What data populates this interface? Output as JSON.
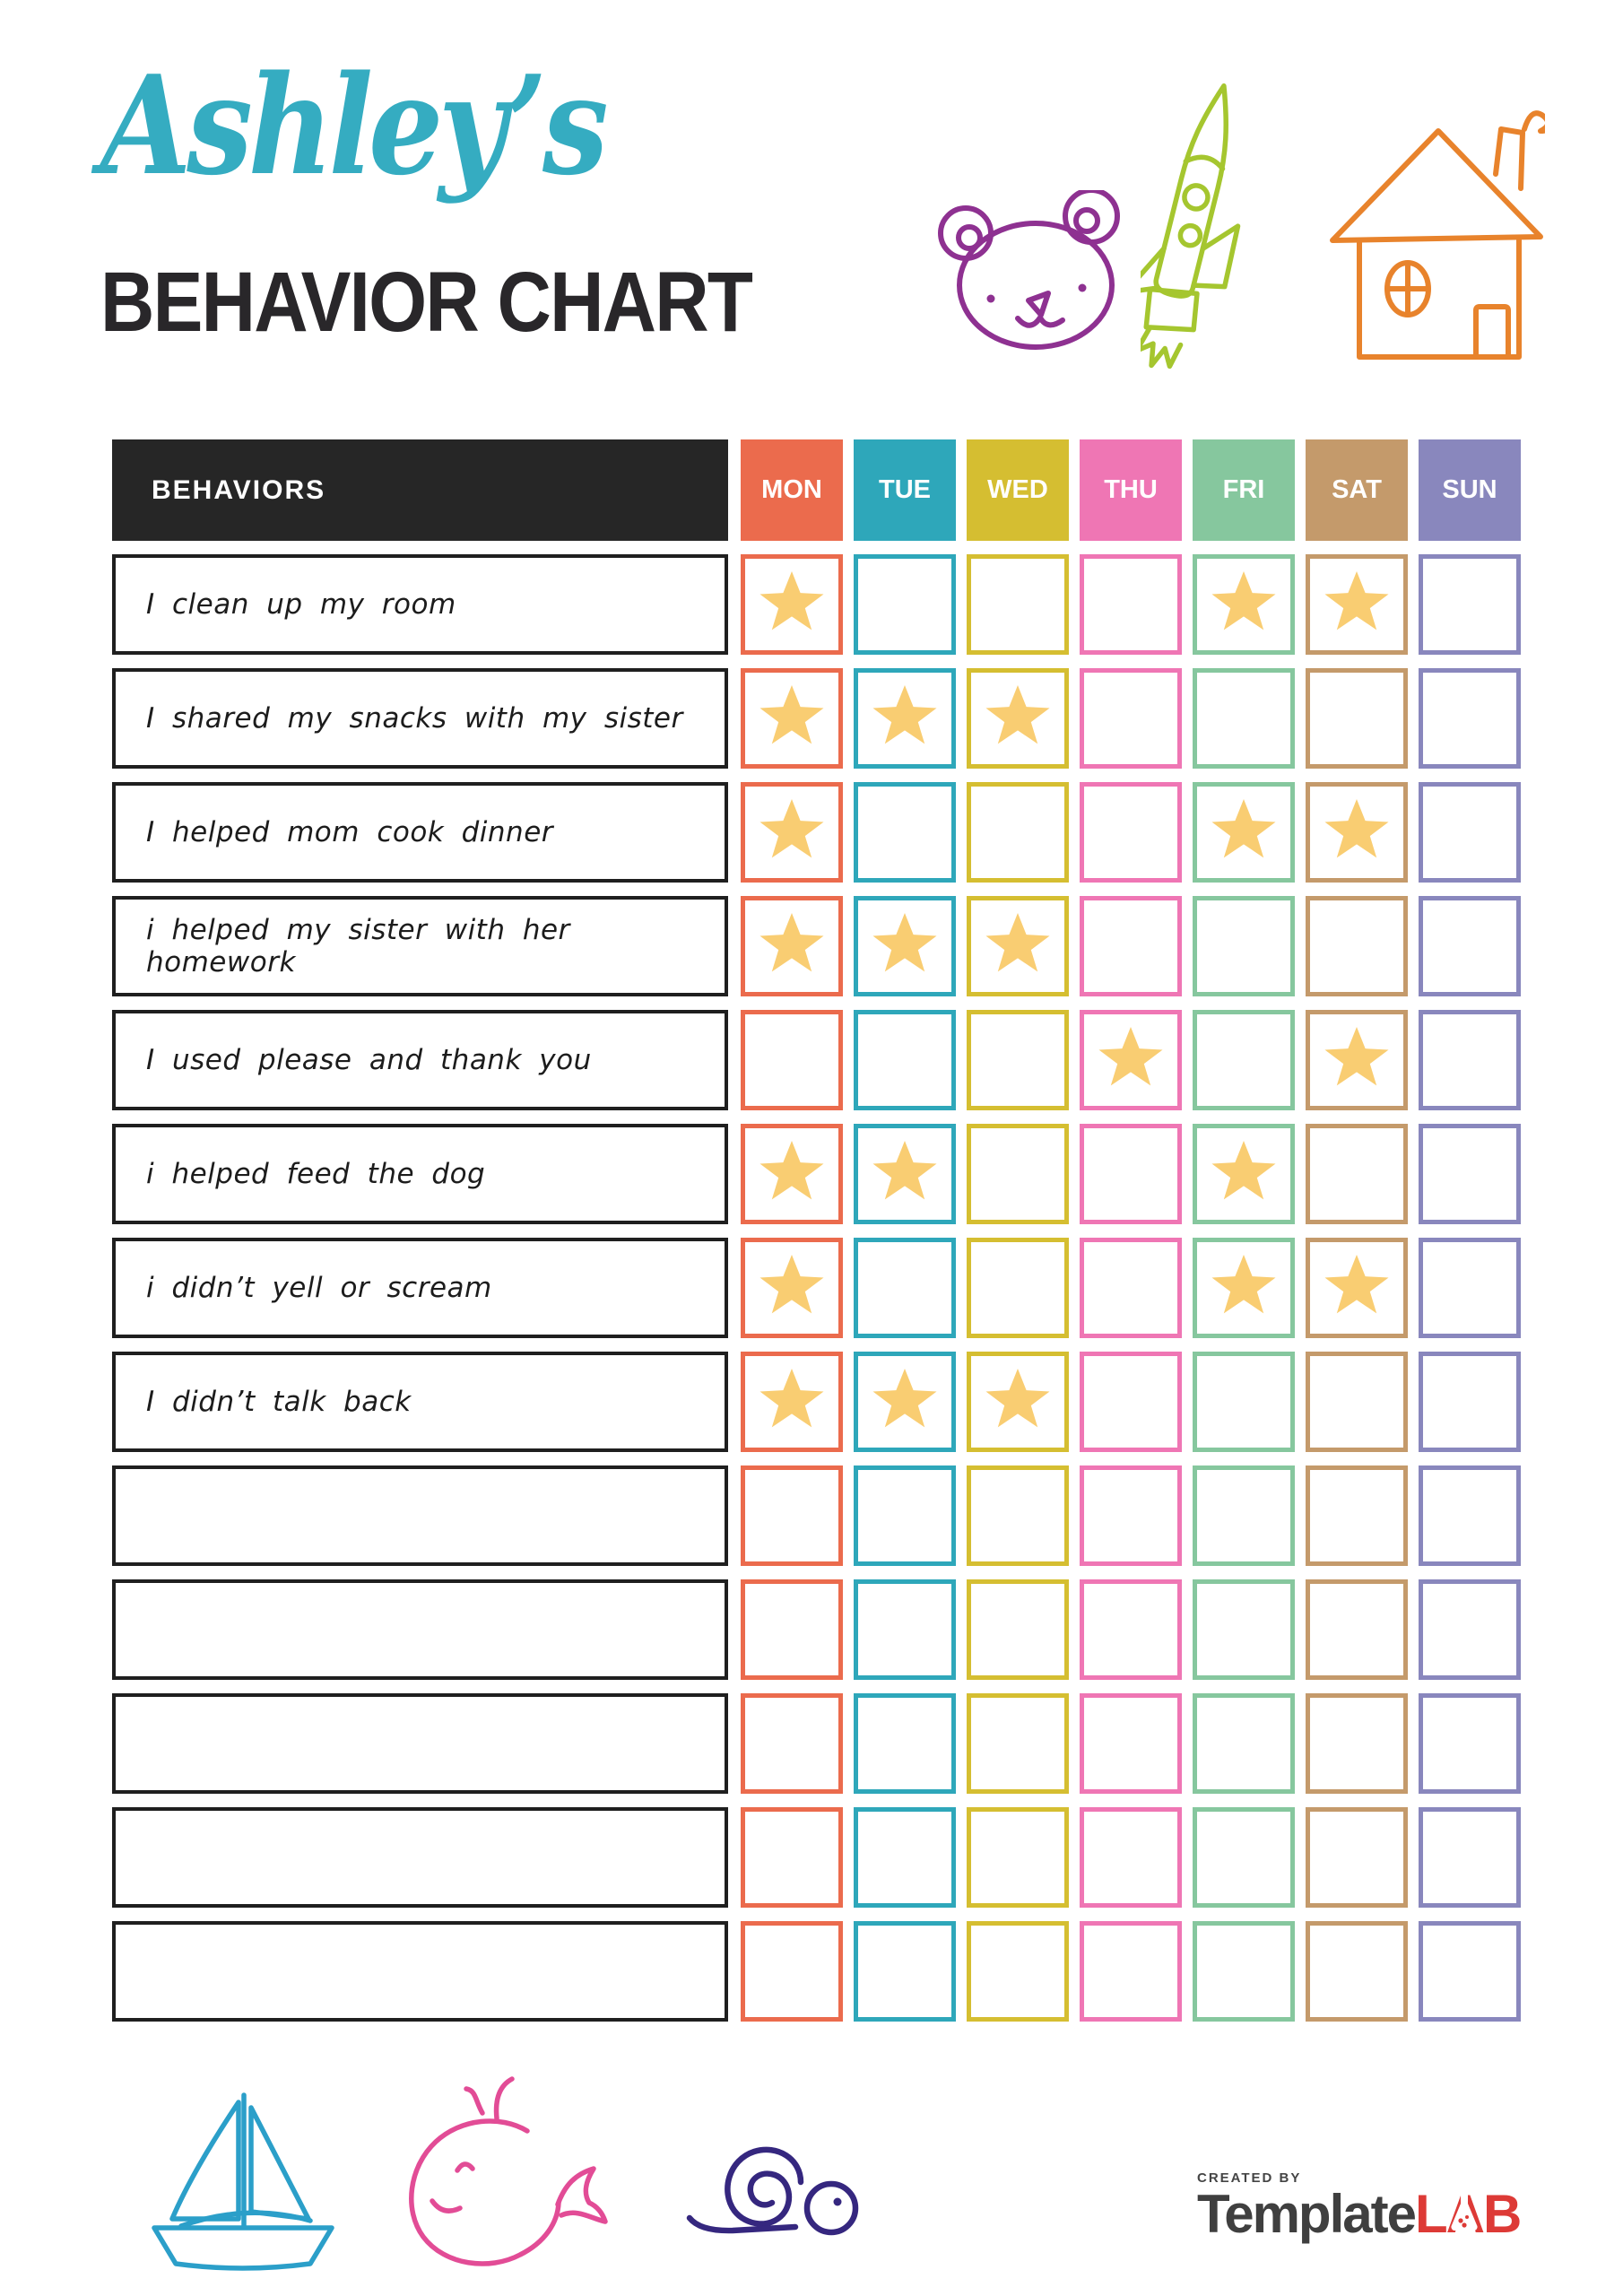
{
  "header": {
    "kid_name": "Ashley’s",
    "kid_name_color": "#35ACC1",
    "title": "BEHAVIOR CHART",
    "title_color": "#29272A"
  },
  "doodles": {
    "bear_color": "#8E3191",
    "rocket_color": "#A5C62F",
    "house_color": "#E8832C",
    "sailboat_color": "#2B9FC9",
    "whale_color": "#E24C96",
    "snail_color": "#35277F"
  },
  "table": {
    "behaviors_header": "BEHAVIORS",
    "header_bg": "#262626",
    "header_text_color": "#FFFFFF",
    "star_color": "#F9CD72",
    "days": [
      {
        "label": "MON",
        "color": "#EB6B4D"
      },
      {
        "label": "TUE",
        "color": "#2EA7BA"
      },
      {
        "label": "WED",
        "color": "#D5BE31"
      },
      {
        "label": "THU",
        "color": "#EF76B4"
      },
      {
        "label": "FRI",
        "color": "#86C79E"
      },
      {
        "label": "SAT",
        "color": "#C49A6B"
      },
      {
        "label": "SUN",
        "color": "#8987BD"
      }
    ],
    "rows": [
      {
        "label": "I clean up my room",
        "stars": [
          1,
          0,
          0,
          0,
          1,
          1,
          0
        ]
      },
      {
        "label": "I shared my snacks with my sister",
        "stars": [
          1,
          1,
          1,
          0,
          0,
          0,
          0
        ]
      },
      {
        "label": "I helped mom cook dinner",
        "stars": [
          1,
          0,
          0,
          0,
          1,
          1,
          0
        ]
      },
      {
        "label": "i helped my sister with her homework",
        "stars": [
          1,
          1,
          1,
          0,
          0,
          0,
          0
        ]
      },
      {
        "label": "I used please and thank you",
        "stars": [
          0,
          0,
          0,
          1,
          0,
          1,
          0
        ]
      },
      {
        "label": "i helped feed the dog",
        "stars": [
          1,
          1,
          0,
          0,
          1,
          0,
          0
        ]
      },
      {
        "label": "i didn’t yell or scream",
        "stars": [
          1,
          0,
          0,
          0,
          1,
          1,
          0
        ]
      },
      {
        "label": "I didn’t talk back",
        "stars": [
          1,
          1,
          1,
          0,
          0,
          0,
          0
        ]
      },
      {
        "label": "",
        "stars": [
          0,
          0,
          0,
          0,
          0,
          0,
          0
        ]
      },
      {
        "label": "",
        "stars": [
          0,
          0,
          0,
          0,
          0,
          0,
          0
        ]
      },
      {
        "label": "",
        "stars": [
          0,
          0,
          0,
          0,
          0,
          0,
          0
        ]
      },
      {
        "label": "",
        "stars": [
          0,
          0,
          0,
          0,
          0,
          0,
          0
        ]
      },
      {
        "label": "",
        "stars": [
          0,
          0,
          0,
          0,
          0,
          0,
          0
        ]
      }
    ]
  },
  "footer": {
    "created_by": "CREATED BY",
    "created_by_color": "#454545",
    "brand_primary": "Template",
    "brand_primary_color": "#3F3F3F",
    "brand_accent": "LAB",
    "brand_accent_color": "#DD3A36"
  }
}
